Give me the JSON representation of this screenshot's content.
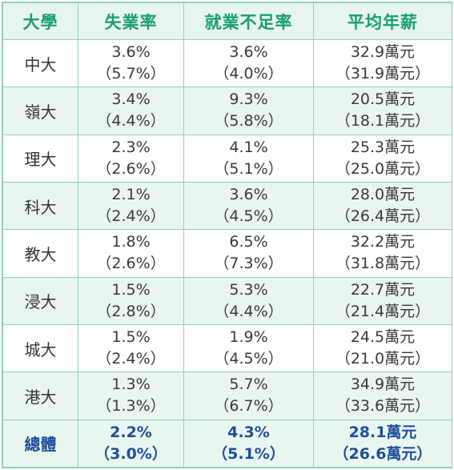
{
  "headers": {
    "university": "大學",
    "unemployment": "失業率",
    "underemployment": "就業不足率",
    "salary": "平均年薪"
  },
  "rows": [
    {
      "name": "中大",
      "unemp": "3.6%",
      "unemp_prev": "（5.7%）",
      "under": "3.6%",
      "under_prev": "（4.0%）",
      "salary": "32.9萬元",
      "salary_prev": "（31.9萬元）"
    },
    {
      "name": "嶺大",
      "unemp": "3.4%",
      "unemp_prev": "（4.4%）",
      "under": "9.3%",
      "under_prev": "（5.8%）",
      "salary": "20.5萬元",
      "salary_prev": "（18.1萬元）"
    },
    {
      "name": "理大",
      "unemp": "2.3%",
      "unemp_prev": "（2.6%）",
      "under": "4.1%",
      "under_prev": "（5.1%）",
      "salary": "25.3萬元",
      "salary_prev": "（25.0萬元）"
    },
    {
      "name": "科大",
      "unemp": "2.1%",
      "unemp_prev": "（2.4%）",
      "under": "3.6%",
      "under_prev": "（4.5%）",
      "salary": "28.0萬元",
      "salary_prev": "（26.4萬元）"
    },
    {
      "name": "教大",
      "unemp": "1.8%",
      "unemp_prev": "（2.6%）",
      "under": "6.5%",
      "under_prev": "（7.3%）",
      "salary": "32.2萬元",
      "salary_prev": "（31.8萬元）"
    },
    {
      "name": "浸大",
      "unemp": "1.5%",
      "unemp_prev": "（2.8%）",
      "under": "5.3%",
      "under_prev": "（4.4%）",
      "salary": "22.7萬元",
      "salary_prev": "（21.4萬元）"
    },
    {
      "name": "城大",
      "unemp": "1.5%",
      "unemp_prev": "（2.4%）",
      "under": "1.9%",
      "under_prev": "（4.5%）",
      "salary": "24.5萬元",
      "salary_prev": "（21.0萬元）"
    },
    {
      "name": "港大",
      "unemp": "1.3%",
      "unemp_prev": "（1.3%）",
      "under": "5.7%",
      "under_prev": "（6.7%）",
      "salary": "34.9萬元",
      "salary_prev": "（33.6萬元）"
    }
  ],
  "total": {
    "name": "總體",
    "unemp": "2.2%",
    "unemp_prev": "（3.0%）",
    "under": "4.3%",
    "under_prev": "（5.1%）",
    "salary": "28.1萬元",
    "salary_prev": "（26.6萬元）"
  },
  "colors": {
    "header_text": "#1a9e73",
    "header_bg": "#e6f5ee",
    "row_alt_bg": "#e9f6f0",
    "border": "#8fd1bf",
    "total_text": "#1f4f9a"
  }
}
